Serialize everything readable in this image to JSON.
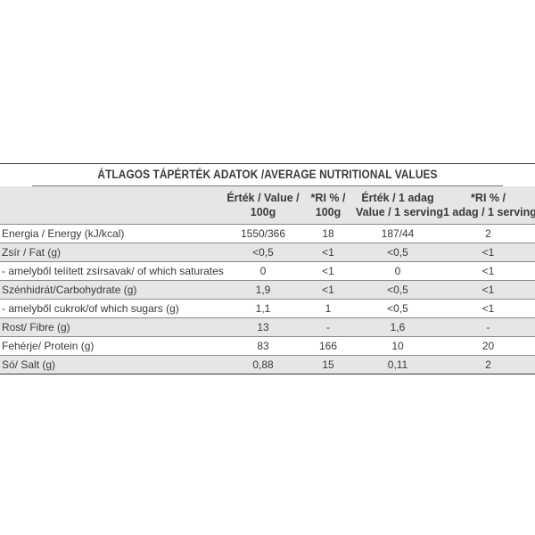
{
  "table": {
    "title": "ÁTLAGOS TÁPÉRTÉK ADATOK /AVERAGE NUTRITIONAL VALUES",
    "headers": {
      "name": "",
      "value_100g_line1": "Érték / Value /",
      "value_100g_line2": "100g",
      "ri_100g_line1": "*RI % /",
      "ri_100g_line2": "100g",
      "value_serving_line1": "Érték / 1 adag",
      "value_serving_line2": "Value / 1 serving",
      "ri_serving_line1": "*RI % /",
      "ri_serving_line2": "1 adag / 1 serving"
    },
    "rows": [
      {
        "name": "Energia / Energy (kJ/kcal)",
        "v100": "1550/366",
        "ri100": "18",
        "vserv": "187/44",
        "riserv": "2"
      },
      {
        "name": "Zsír / Fat (g)",
        "v100": "<0,5",
        "ri100": "<1",
        "vserv": "<0,5",
        "riserv": "<1"
      },
      {
        "name": "- amelyből telített zsírsavak/ of which saturates (g)",
        "v100": "0",
        "ri100": "<1",
        "vserv": "0",
        "riserv": "<1"
      },
      {
        "name": "Szénhidrát/Carbohydrate (g)",
        "v100": "1,9",
        "ri100": "<1",
        "vserv": "<0,5",
        "riserv": "<1"
      },
      {
        "name": "- amelyből cukrok/of which sugars (g)",
        "v100": "1,1",
        "ri100": "1",
        "vserv": "<0,5",
        "riserv": "<1"
      },
      {
        "name": "Rost/ Fibre (g)",
        "v100": "13",
        "ri100": "-",
        "vserv": "1,6",
        "riserv": "-"
      },
      {
        "name": "Fehérje/ Protein (g)",
        "v100": "83",
        "ri100": "166",
        "vserv": "10",
        "riserv": "20"
      },
      {
        "name": "Só/ Salt (g)",
        "v100": "0,88",
        "ri100": "15",
        "vserv": "0,11",
        "riserv": "2"
      }
    ]
  }
}
